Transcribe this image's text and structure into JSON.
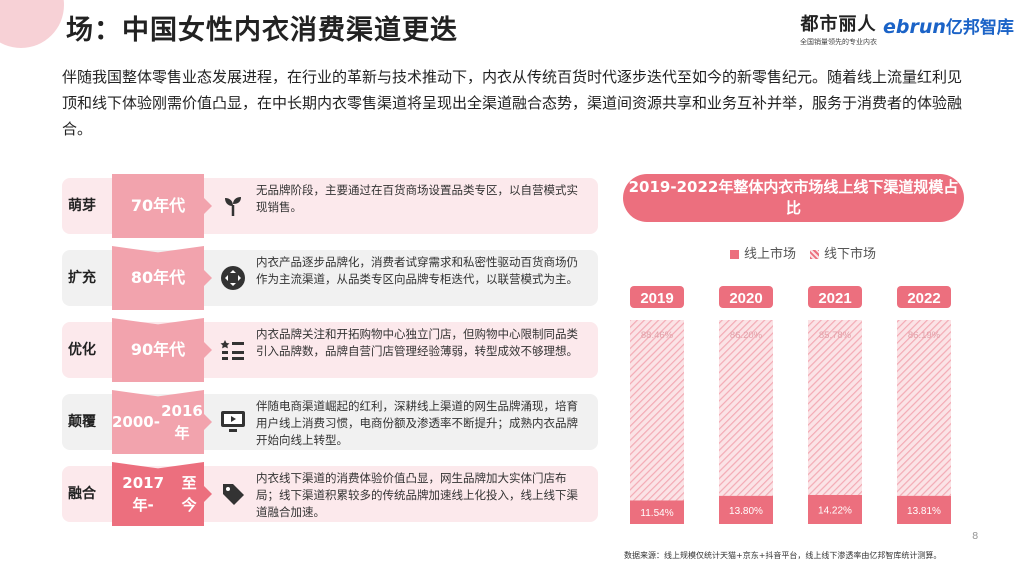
{
  "title": "场：中国女性内衣消费渠道更迭",
  "logos": {
    "dushi_name": "都市丽人",
    "dushi_tagline": "全国销量领先的专业内衣",
    "ebrun_en": "ebrun",
    "ebrun_cn": "亿邦智库"
  },
  "intro": "伴随我国整体零售业态发展进程，在行业的革新与技术推动下，内衣从传统百货时代逐步迭代至如今的新零售纪元。随着线上流量红利见顶和线下体验刚需价值凸显，在中长期内衣零售渠道将呈现出全渠道融合态势，渠道间资源共享和业务互补并举，服务于消费者的体验融合。",
  "timeline": [
    {
      "stage": "萌芽",
      "era": "70年代",
      "icon": "sprout-icon",
      "desc": "无品牌阶段，主要通过在百货商场设置品类专区，以自营模式实现销售。"
    },
    {
      "stage": "扩充",
      "era": "80年代",
      "icon": "expand-icon",
      "desc": "内衣产品逐步品牌化，消费者试穿需求和私密性驱动百货商场仍作为主流渠道，从品类专区向品牌专柜迭代，以联营模式为主。"
    },
    {
      "stage": "优化",
      "era": "90年代",
      "icon": "list-star-icon",
      "desc": "内衣品牌关注和开拓购物中心独立门店，但购物中心限制同品类引入品牌数，品牌自营门店管理经验薄弱，转型成效不够理想。"
    },
    {
      "stage": "颠覆",
      "era": "2000-2016年",
      "icon": "monitor-icon",
      "desc": "伴随电商渠道崛起的红利，深耕线上渠道的网生品牌涌现，培育用户线上消费习惯，电商份额及渗透率不断提升；成熟内衣品牌开始向线上转型。"
    },
    {
      "stage": "融合",
      "era": "2017年-至今",
      "icon": "tag-icon",
      "desc": "内衣线下渠道的消费体验价值凸显，网生品牌加大实体门店布局；线下渠道积累较多的传统品牌加速线上化投入，线上线下渠道融合加速。"
    }
  ],
  "chart_data": {
    "type": "bar",
    "stacked": true,
    "percent_stacked": true,
    "title": "2019-2022年整体内衣市场线上线下渠道规模占比",
    "categories": [
      "2019",
      "2020",
      "2021",
      "2022"
    ],
    "series": [
      {
        "name": "线上市场",
        "values": [
          11.54,
          13.8,
          14.22,
          13.81
        ],
        "labels": [
          "11.54%",
          "13.80%",
          "14.22%",
          "13.81%"
        ],
        "color": "#ec6f7e"
      },
      {
        "name": "线下市场",
        "values": [
          88.46,
          86.2,
          85.78,
          86.19
        ],
        "labels": [
          "88.46%",
          "86.20%",
          "85.78%",
          "86.19%"
        ],
        "color": "#f4b6be"
      }
    ],
    "ylim": [
      0,
      100
    ],
    "legend": "top"
  },
  "page_number": "8",
  "source": "数据来源：线上规模仅统计天猫+京东+抖音平台，线上线下渗透率由亿邦智库统计测算。",
  "colors": {
    "accent": "#ec6f7e",
    "era_fill": "#f2a3ad",
    "row_bg_light": "#fce9ec",
    "row_bg_grey": "#f1f1f1"
  }
}
